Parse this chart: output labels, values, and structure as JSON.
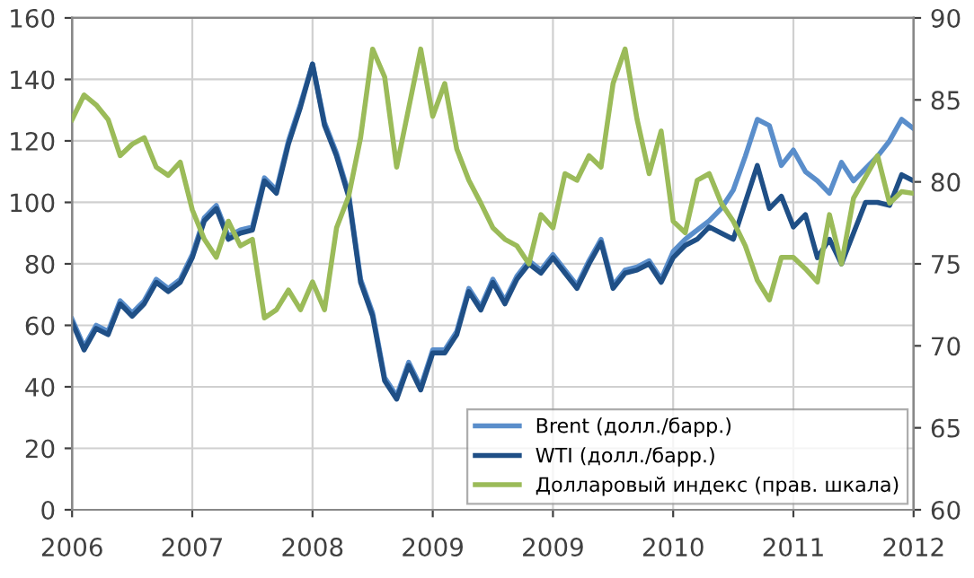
{
  "chart_data": {
    "type": "line",
    "categories": [
      "2006",
      null,
      null,
      null,
      null,
      null,
      null,
      null,
      null,
      null,
      "2007",
      null,
      null,
      null,
      null,
      null,
      null,
      null,
      null,
      null,
      "2008",
      null,
      null,
      null,
      null,
      null,
      null,
      null,
      null,
      null,
      "2009",
      null,
      null,
      null,
      null,
      null,
      null,
      null,
      null,
      null,
      "2009",
      null,
      null,
      null,
      null,
      null,
      null,
      null,
      null,
      null,
      "2010",
      null,
      null,
      null,
      null,
      null,
      null,
      null,
      null,
      null,
      "2011",
      null,
      null,
      null,
      null,
      null,
      null,
      null,
      null,
      null,
      "2012"
    ],
    "ylim": [
      0,
      160
    ],
    "yticks": [
      0,
      20,
      40,
      60,
      80,
      100,
      120,
      140,
      160
    ],
    "y2lim": [
      60,
      90
    ],
    "y2ticks": [
      60,
      65,
      70,
      75,
      80,
      85,
      90
    ],
    "grid": true,
    "legend": "bottom right",
    "series": [
      {
        "name": "Brent (долл./барр.)",
        "color": "#5a8ecb",
        "values": [
          62,
          53,
          60,
          58,
          68,
          64,
          68,
          75,
          72,
          75,
          83,
          95,
          99,
          89,
          91,
          92,
          108,
          104,
          120,
          132,
          145,
          126,
          116,
          103,
          75,
          64,
          43,
          37,
          48,
          40,
          52,
          52,
          58,
          72,
          66,
          75,
          68,
          76,
          81,
          78,
          83,
          78,
          73,
          81,
          88,
          73,
          78,
          79,
          81,
          75,
          84,
          88,
          91,
          94,
          98,
          104,
          115,
          127,
          125,
          112,
          117,
          110,
          107,
          103,
          113,
          107,
          111,
          115,
          120,
          127,
          124
        ]
      },
      {
        "name": "WTI (долл./барр.)",
        "color": "#1f4f86",
        "values": [
          61,
          52,
          59,
          57,
          67,
          63,
          67,
          74,
          71,
          74,
          82,
          94,
          98,
          88,
          90,
          91,
          107,
          103,
          119,
          131,
          145,
          125,
          115,
          102,
          74,
          63,
          42,
          36,
          47,
          39,
          51,
          51,
          57,
          71,
          65,
          74,
          67,
          75,
          80,
          77,
          82,
          77,
          72,
          80,
          87,
          72,
          77,
          78,
          80,
          74,
          82,
          86,
          88,
          92,
          90,
          88,
          100,
          112,
          98,
          102,
          92,
          96,
          82,
          88,
          80,
          90,
          100,
          100,
          99,
          109,
          107
        ]
      },
      {
        "name": "Долларовый индекс (прав. шкала)",
        "color": "#9bbb59",
        "axis": "y2",
        "values": [
          83.8,
          85.3,
          84.7,
          83.8,
          81.6,
          82.3,
          82.7,
          80.9,
          80.4,
          81.2,
          78.3,
          76.5,
          75.4,
          77.6,
          76.1,
          76.5,
          71.7,
          72.2,
          73.4,
          72.2,
          73.9,
          72.2,
          77.2,
          79.1,
          82.7,
          88.1,
          86.4,
          80.9,
          84.5,
          88.1,
          84.0,
          86.0,
          82.0,
          80.1,
          78.7,
          77.2,
          76.5,
          76.1,
          75.0,
          78.0,
          77.2,
          80.5,
          80.1,
          81.6,
          80.9,
          86.0,
          88.1,
          83.8,
          80.5,
          83.1,
          77.6,
          76.9,
          80.1,
          80.5,
          78.7,
          77.6,
          76.1,
          74.0,
          72.8,
          75.4,
          75.4,
          74.7,
          73.9,
          78.0,
          75.0,
          79.0,
          80.3,
          81.6,
          78.7,
          79.4,
          79.3
        ]
      }
    ]
  }
}
